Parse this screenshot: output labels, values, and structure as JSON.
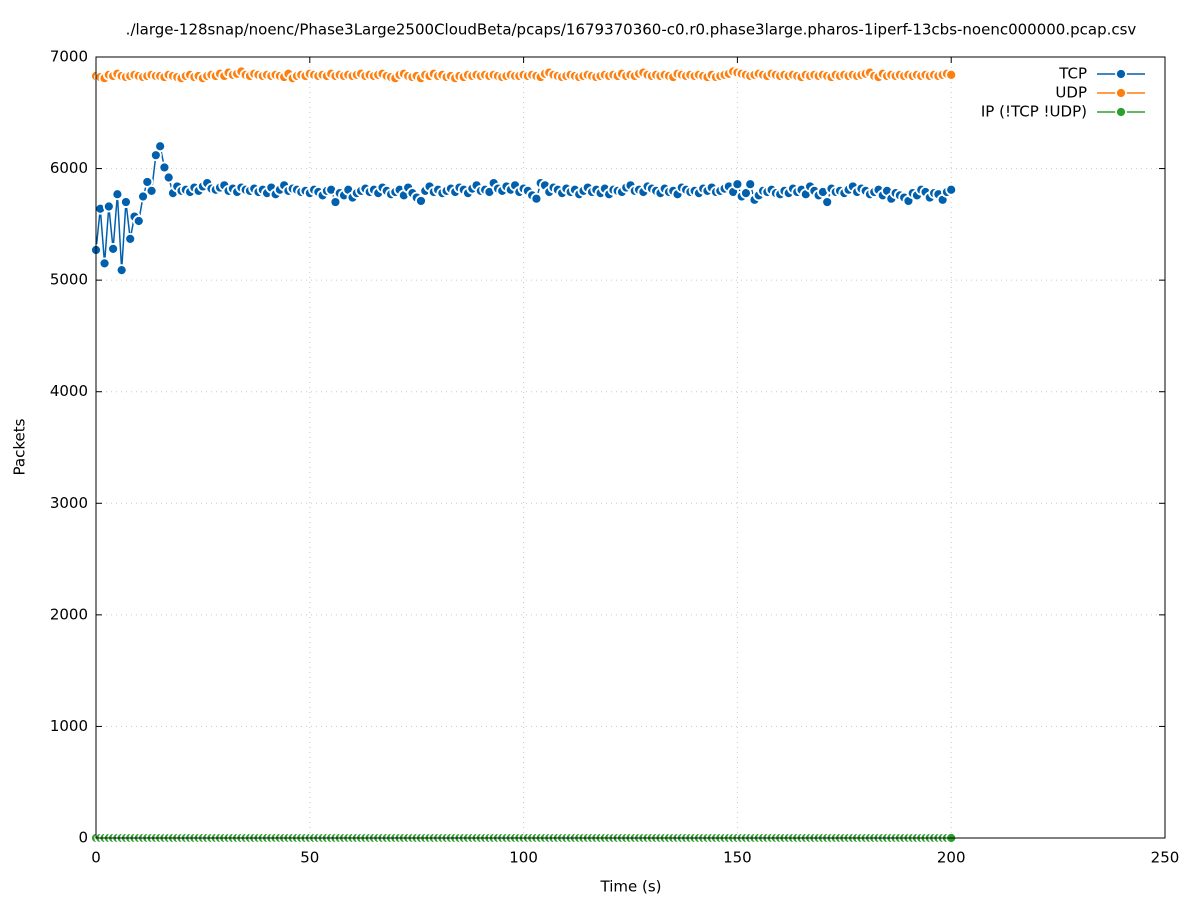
{
  "chart_data": {
    "type": "line",
    "title": "./large-128snap/noenc/Phase3Large2500CloudBeta/pcaps/1679370360-c0.r0.phase3large.pharos-1iperf-13cbs-noenc000000.pcap.csv",
    "xlabel": "Time (s)",
    "ylabel": "Packets",
    "xlim": [
      0,
      250
    ],
    "xticks": [
      0,
      50,
      100,
      150,
      200,
      250
    ],
    "ylim": [
      0,
      7000
    ],
    "yticks": [
      0,
      1000,
      2000,
      3000,
      4000,
      5000,
      6000,
      7000
    ],
    "grid": true,
    "legend": "top-right",
    "x": [
      0,
      1,
      2,
      3,
      4,
      5,
      6,
      7,
      8,
      9,
      10,
      11,
      12,
      13,
      14,
      15,
      16,
      17,
      18,
      19,
      20,
      21,
      22,
      23,
      24,
      25,
      26,
      27,
      28,
      29,
      30,
      31,
      32,
      33,
      34,
      35,
      36,
      37,
      38,
      39,
      40,
      41,
      42,
      43,
      44,
      45,
      46,
      47,
      48,
      49,
      50,
      51,
      52,
      53,
      54,
      55,
      56,
      57,
      58,
      59,
      60,
      61,
      62,
      63,
      64,
      65,
      66,
      67,
      68,
      69,
      70,
      71,
      72,
      73,
      74,
      75,
      76,
      77,
      78,
      79,
      80,
      81,
      82,
      83,
      84,
      85,
      86,
      87,
      88,
      89,
      90,
      91,
      92,
      93,
      94,
      95,
      96,
      97,
      98,
      99,
      100,
      101,
      102,
      103,
      104,
      105,
      106,
      107,
      108,
      109,
      110,
      111,
      112,
      113,
      114,
      115,
      116,
      117,
      118,
      119,
      120,
      121,
      122,
      123,
      124,
      125,
      126,
      127,
      128,
      129,
      130,
      131,
      132,
      133,
      134,
      135,
      136,
      137,
      138,
      139,
      140,
      141,
      142,
      143,
      144,
      145,
      146,
      147,
      148,
      149,
      150,
      151,
      152,
      153,
      154,
      155,
      156,
      157,
      158,
      159,
      160,
      161,
      162,
      163,
      164,
      165,
      166,
      167,
      168,
      169,
      170,
      171,
      172,
      173,
      174,
      175,
      176,
      177,
      178,
      179,
      180,
      181,
      182,
      183,
      184,
      185,
      186,
      187,
      188,
      189,
      190,
      191,
      192,
      193,
      194,
      195,
      196,
      197,
      198,
      199,
      200
    ],
    "series": [
      {
        "name": "TCP",
        "color": "#0060ad",
        "values": [
          5270,
          5640,
          5150,
          5660,
          5280,
          5770,
          5090,
          5700,
          5370,
          5570,
          5530,
          5750,
          5880,
          5800,
          6120,
          6200,
          6010,
          5920,
          5780,
          5840,
          5800,
          5810,
          5790,
          5830,
          5800,
          5840,
          5870,
          5820,
          5810,
          5830,
          5850,
          5800,
          5820,
          5790,
          5830,
          5810,
          5800,
          5820,
          5790,
          5810,
          5780,
          5830,
          5770,
          5810,
          5850,
          5800,
          5820,
          5810,
          5790,
          5800,
          5780,
          5810,
          5790,
          5760,
          5800,
          5810,
          5700,
          5780,
          5760,
          5810,
          5740,
          5780,
          5800,
          5820,
          5790,
          5810,
          5780,
          5830,
          5800,
          5770,
          5790,
          5810,
          5760,
          5830,
          5780,
          5740,
          5710,
          5800,
          5840,
          5790,
          5810,
          5780,
          5800,
          5820,
          5790,
          5830,
          5810,
          5780,
          5820,
          5850,
          5800,
          5810,
          5790,
          5870,
          5820,
          5800,
          5840,
          5810,
          5850,
          5790,
          5820,
          5800,
          5760,
          5730,
          5870,
          5850,
          5790,
          5830,
          5810,
          5780,
          5820,
          5790,
          5810,
          5770,
          5800,
          5830,
          5790,
          5810,
          5780,
          5820,
          5770,
          5810,
          5800,
          5790,
          5830,
          5850,
          5800,
          5810,
          5790,
          5840,
          5820,
          5800,
          5780,
          5820,
          5790,
          5800,
          5770,
          5830,
          5810,
          5790,
          5800,
          5780,
          5820,
          5800,
          5830,
          5790,
          5800,
          5820,
          5840,
          5790,
          5860,
          5750,
          5780,
          5860,
          5720,
          5760,
          5800,
          5790,
          5810,
          5780,
          5770,
          5800,
          5780,
          5820,
          5790,
          5810,
          5770,
          5840,
          5800,
          5760,
          5790,
          5700,
          5820,
          5790,
          5800,
          5780,
          5810,
          5840,
          5790,
          5820,
          5800,
          5770,
          5790,
          5810,
          5760,
          5800,
          5730,
          5780,
          5760,
          5740,
          5710,
          5780,
          5760,
          5810,
          5790,
          5740,
          5780,
          5770,
          5720,
          5790,
          5810
        ]
      },
      {
        "name": "UDP",
        "color": "#ff7f0e",
        "values": [
          6830,
          6820,
          6810,
          6840,
          6830,
          6850,
          6830,
          6820,
          6830,
          6840,
          6830,
          6820,
          6830,
          6840,
          6830,
          6830,
          6820,
          6840,
          6830,
          6820,
          6810,
          6830,
          6840,
          6820,
          6830,
          6810,
          6830,
          6840,
          6830,
          6850,
          6830,
          6860,
          6840,
          6850,
          6870,
          6840,
          6830,
          6850,
          6840,
          6830,
          6840,
          6830,
          6840,
          6830,
          6820,
          6850,
          6810,
          6830,
          6840,
          6830,
          6850,
          6840,
          6830,
          6840,
          6830,
          6850,
          6830,
          6840,
          6830,
          6840,
          6830,
          6840,
          6850,
          6830,
          6840,
          6830,
          6840,
          6850,
          6830,
          6820,
          6810,
          6840,
          6850,
          6830,
          6820,
          6830,
          6810,
          6840,
          6830,
          6850,
          6830,
          6840,
          6820,
          6830,
          6810,
          6830,
          6820,
          6840,
          6830,
          6840,
          6830,
          6840,
          6830,
          6840,
          6830,
          6820,
          6830,
          6840,
          6830,
          6830,
          6840,
          6830,
          6840,
          6830,
          6820,
          6850,
          6860,
          6840,
          6830,
          6820,
          6830,
          6840,
          6830,
          6820,
          6830,
          6840,
          6830,
          6820,
          6830,
          6840,
          6830,
          6840,
          6830,
          6850,
          6830,
          6840,
          6830,
          6850,
          6860,
          6840,
          6830,
          6840,
          6830,
          6840,
          6830,
          6820,
          6850,
          6840,
          6830,
          6840,
          6830,
          6840,
          6830,
          6820,
          6840,
          6820,
          6830,
          6840,
          6850,
          6870,
          6860,
          6850,
          6840,
          6830,
          6840,
          6850,
          6840,
          6830,
          6850,
          6840,
          6830,
          6840,
          6830,
          6840,
          6830,
          6820,
          6840,
          6830,
          6840,
          6830,
          6840,
          6830,
          6820,
          6840,
          6830,
          6840,
          6830,
          6840,
          6830,
          6840,
          6850,
          6860,
          6830,
          6820,
          6850,
          6830,
          6840,
          6830,
          6840,
          6830,
          6840,
          6830,
          6840,
          6830,
          6840,
          6830,
          6840,
          6830,
          6840,
          6850,
          6840
        ]
      },
      {
        "name": "IP (!TCP  !UDP)",
        "color": "#2ca02c",
        "values": [
          0,
          0,
          0,
          0,
          0,
          0,
          0,
          0,
          0,
          0,
          0,
          0,
          0,
          0,
          0,
          0,
          0,
          0,
          0,
          0,
          0,
          0,
          0,
          0,
          0,
          0,
          0,
          0,
          0,
          0,
          0,
          0,
          0,
          0,
          0,
          0,
          0,
          0,
          0,
          0,
          0,
          0,
          0,
          0,
          0,
          0,
          0,
          0,
          0,
          0,
          0,
          0,
          0,
          0,
          0,
          0,
          0,
          0,
          0,
          0,
          0,
          0,
          0,
          0,
          0,
          0,
          0,
          0,
          0,
          0,
          0,
          0,
          0,
          0,
          0,
          0,
          0,
          0,
          0,
          0,
          0,
          0,
          0,
          0,
          0,
          0,
          0,
          0,
          0,
          0,
          0,
          0,
          0,
          0,
          0,
          0,
          0,
          0,
          0,
          0,
          0,
          0,
          0,
          0,
          0,
          0,
          0,
          0,
          0,
          0,
          0,
          0,
          0,
          0,
          0,
          0,
          0,
          0,
          0,
          0,
          0,
          0,
          0,
          0,
          0,
          0,
          0,
          0,
          0,
          0,
          0,
          0,
          0,
          0,
          0,
          0,
          0,
          0,
          0,
          0,
          0,
          0,
          0,
          0,
          0,
          0,
          0,
          0,
          0,
          0,
          0,
          0,
          0,
          0,
          0,
          0,
          0,
          0,
          0,
          0,
          0,
          0,
          0,
          0,
          0,
          0,
          0,
          0,
          0,
          0,
          0,
          0,
          0,
          0,
          0,
          0,
          0,
          0,
          0,
          0,
          0,
          0,
          0,
          0,
          0,
          0,
          0,
          0,
          0,
          0,
          0,
          0,
          0,
          0,
          0,
          0,
          0,
          0,
          0,
          0,
          0
        ]
      }
    ]
  }
}
